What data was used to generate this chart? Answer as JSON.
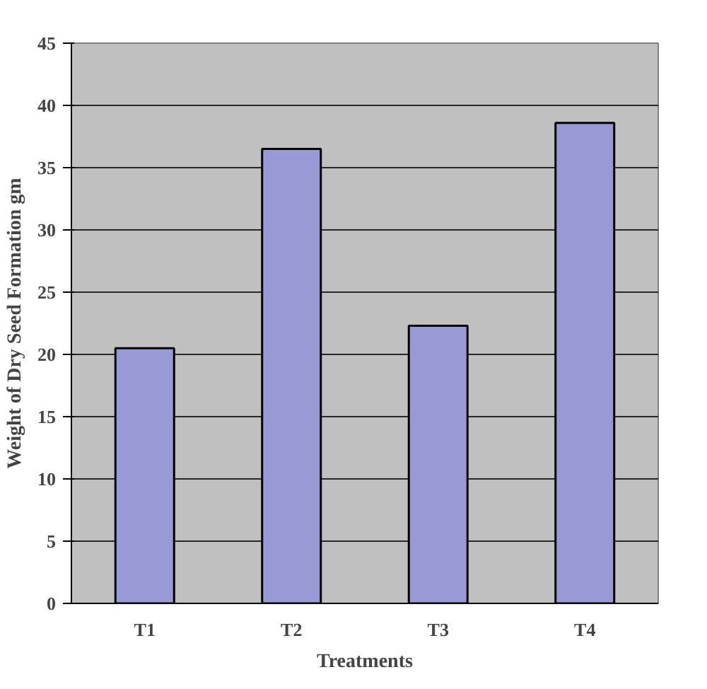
{
  "chart_data": {
    "type": "bar",
    "xlabel": "Treatments",
    "ylabel": "Weight of Dry Seed Formation gm",
    "categories": [
      "T1",
      "T2",
      "T3",
      "T4"
    ],
    "values": [
      20.5,
      36.5,
      22.3,
      38.6
    ],
    "color": "#9999d6",
    "ylim": [
      0,
      45
    ],
    "yticks": [
      0,
      5,
      10,
      15,
      20,
      25,
      30,
      35,
      40,
      45
    ],
    "grid": "y"
  }
}
